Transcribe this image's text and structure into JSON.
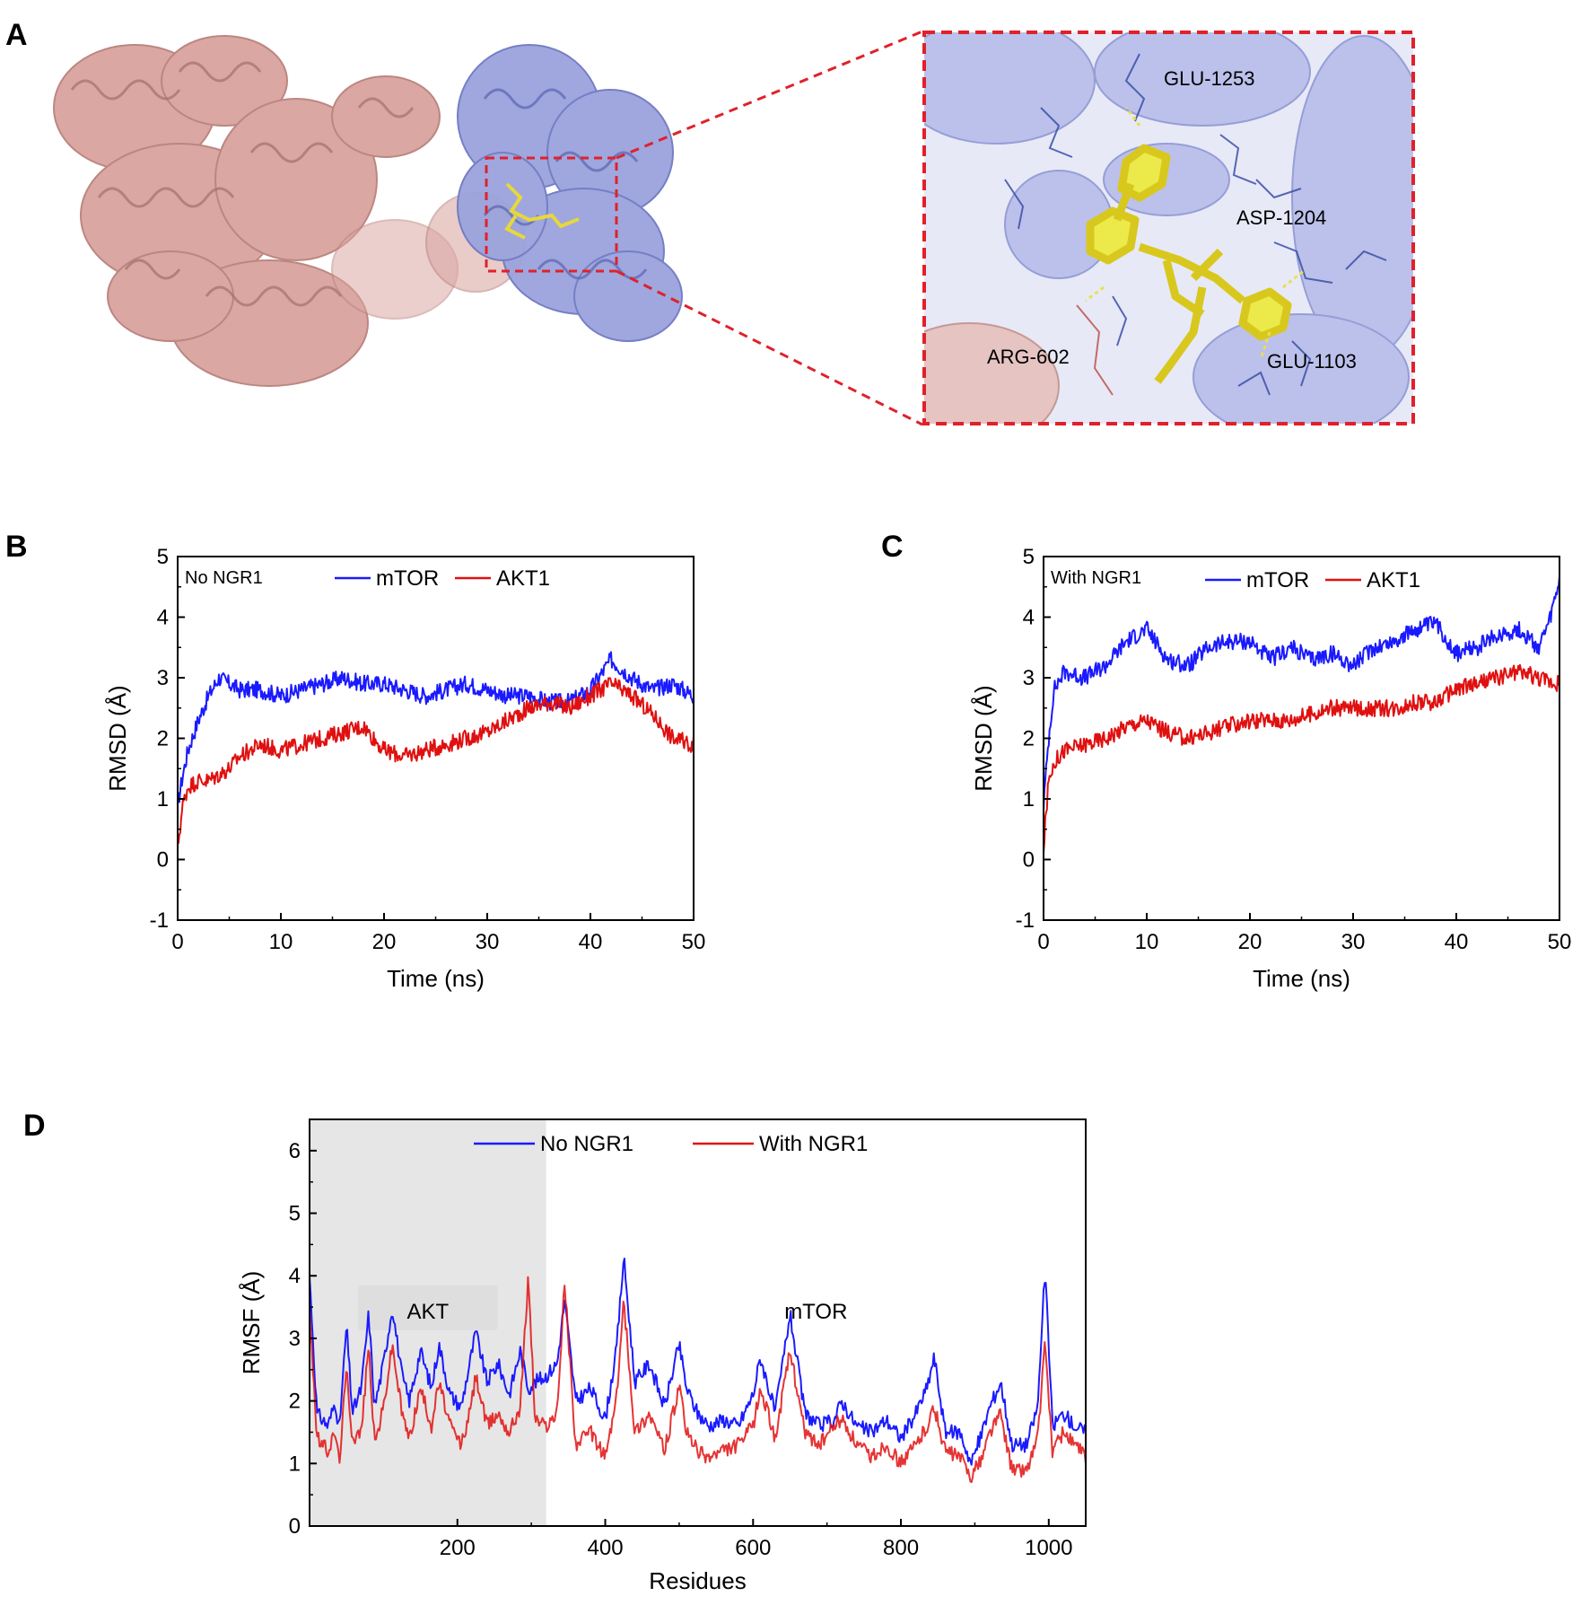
{
  "panels": {
    "A": "A",
    "B": "B",
    "C": "C",
    "D": "D"
  },
  "structure": {
    "residues": [
      "GLU-1253",
      "ASP-1204",
      "ARG-602",
      "GLU-1103"
    ],
    "colors": {
      "akt": "#d9a39f",
      "mtor": "#9aa3dd",
      "ligand": "#ecea4a",
      "box": "#e0212b"
    }
  },
  "chart_data": [
    {
      "type": "line",
      "panel": "B",
      "corner_text": "No NGR1",
      "xlabel": "Time (ns)",
      "ylabel": "RMSD (Å)",
      "xlim": [
        0,
        50
      ],
      "ylim": [
        -1,
        5
      ],
      "xticks": [
        "0",
        "10",
        "20",
        "30",
        "40",
        "50"
      ],
      "yticks": [
        "-1",
        "0",
        "1",
        "2",
        "3",
        "4",
        "5"
      ],
      "grid": false,
      "legend_position": "top-center",
      "series": [
        {
          "name": "mTOR",
          "color": "#1a1aff",
          "x": [
            0,
            0.5,
            1,
            2,
            3,
            4,
            5,
            6,
            8,
            10,
            12,
            14,
            16,
            18,
            20,
            22,
            24,
            26,
            28,
            30,
            32,
            34,
            36,
            38,
            40,
            42,
            44,
            46,
            48,
            50
          ],
          "y": [
            0.9,
            1.4,
            1.8,
            2.3,
            2.7,
            3.0,
            2.9,
            2.8,
            2.8,
            2.7,
            2.8,
            2.9,
            3.0,
            2.9,
            2.9,
            2.8,
            2.7,
            2.8,
            2.9,
            2.8,
            2.7,
            2.7,
            2.6,
            2.6,
            2.8,
            3.3,
            3.0,
            2.8,
            2.9,
            2.7
          ]
        },
        {
          "name": "AKT1",
          "color": "#e01010",
          "x": [
            0,
            0.5,
            1,
            2,
            3,
            4,
            5,
            6,
            8,
            10,
            12,
            14,
            16,
            18,
            20,
            22,
            24,
            26,
            28,
            30,
            32,
            34,
            36,
            38,
            40,
            42,
            44,
            46,
            48,
            50
          ],
          "y": [
            0.2,
            0.9,
            1.2,
            1.3,
            1.3,
            1.4,
            1.5,
            1.7,
            1.9,
            1.8,
            1.9,
            2.0,
            2.1,
            2.2,
            1.8,
            1.7,
            1.8,
            1.9,
            2.0,
            2.1,
            2.3,
            2.5,
            2.6,
            2.5,
            2.7,
            2.9,
            2.7,
            2.4,
            2.0,
            1.9
          ]
        }
      ]
    },
    {
      "type": "line",
      "panel": "C",
      "corner_text": "With NGR1",
      "xlabel": "Time (ns)",
      "ylabel": "RMSD (Å)",
      "xlim": [
        0,
        50
      ],
      "ylim": [
        -1,
        5
      ],
      "xticks": [
        "0",
        "10",
        "20",
        "30",
        "40",
        "50"
      ],
      "yticks": [
        "-1",
        "0",
        "1",
        "2",
        "3",
        "4",
        "5"
      ],
      "grid": false,
      "legend_position": "top-center",
      "series": [
        {
          "name": "mTOR",
          "color": "#1a1aff",
          "x": [
            0,
            0.5,
            1,
            2,
            4,
            6,
            8,
            10,
            12,
            14,
            16,
            18,
            20,
            22,
            24,
            26,
            28,
            30,
            32,
            34,
            36,
            38,
            40,
            42,
            44,
            46,
            48,
            49,
            50
          ],
          "y": [
            0.9,
            2.0,
            2.8,
            3.1,
            3.0,
            3.2,
            3.6,
            3.8,
            3.3,
            3.2,
            3.5,
            3.6,
            3.6,
            3.3,
            3.5,
            3.3,
            3.4,
            3.2,
            3.5,
            3.6,
            3.8,
            3.9,
            3.4,
            3.5,
            3.7,
            3.8,
            3.5,
            3.9,
            4.6
          ]
        },
        {
          "name": "AKT1",
          "color": "#e01010",
          "x": [
            0,
            0.5,
            1,
            2,
            4,
            6,
            8,
            10,
            12,
            14,
            16,
            18,
            20,
            22,
            24,
            26,
            28,
            30,
            32,
            34,
            36,
            38,
            40,
            42,
            44,
            46,
            48,
            50
          ],
          "y": [
            0.2,
            1.3,
            1.6,
            1.8,
            1.9,
            2.0,
            2.2,
            2.3,
            2.1,
            2.0,
            2.1,
            2.2,
            2.3,
            2.3,
            2.3,
            2.4,
            2.5,
            2.5,
            2.5,
            2.5,
            2.6,
            2.6,
            2.8,
            2.9,
            3.0,
            3.1,
            3.0,
            2.9
          ]
        }
      ]
    },
    {
      "type": "line",
      "panel": "D",
      "xlabel": "Residues",
      "ylabel": "RMSF (Å)",
      "xlim": [
        0,
        1050
      ],
      "ylim": [
        0,
        6.5
      ],
      "xticks": [
        "200",
        "400",
        "600",
        "800",
        "1000"
      ],
      "yticks": [
        "0",
        "1",
        "2",
        "3",
        "4",
        "5",
        "6"
      ],
      "grid": false,
      "legend_position": "top",
      "regions": [
        {
          "label": "AKT",
          "x_start": 0,
          "x_end": 320,
          "shaded": true
        },
        {
          "label": "mTOR",
          "x_start": 320,
          "x_end": 1050,
          "shaded": false
        }
      ],
      "series": [
        {
          "name": "No NGR1",
          "color": "#1a1aff",
          "x": [
            0,
            10,
            25,
            35,
            40,
            50,
            58,
            70,
            80,
            88,
            100,
            112,
            125,
            135,
            150,
            165,
            175,
            190,
            205,
            215,
            225,
            240,
            255,
            270,
            285,
            296,
            305,
            320,
            335,
            345,
            360,
            380,
            400,
            415,
            425,
            440,
            460,
            480,
            500,
            510,
            525,
            540,
            560,
            580,
            600,
            610,
            630,
            650,
            670,
            690,
            710,
            720,
            740,
            760,
            780,
            800,
            820,
            835,
            845,
            860,
            880,
            895,
            910,
            920,
            935,
            950,
            970,
            985,
            995,
            1005,
            1020,
            1035,
            1050
          ],
          "y": [
            4.0,
            1.8,
            1.6,
            2.0,
            1.5,
            3.2,
            1.8,
            2.2,
            3.4,
            1.9,
            2.6,
            3.5,
            2.4,
            2.0,
            2.8,
            2.2,
            2.9,
            2.1,
            1.9,
            2.5,
            3.1,
            2.3,
            2.6,
            2.1,
            2.8,
            2.2,
            2.3,
            2.4,
            2.6,
            3.6,
            2.0,
            2.2,
            1.7,
            2.8,
            4.3,
            2.3,
            2.6,
            1.9,
            2.9,
            2.2,
            1.8,
            1.6,
            1.7,
            1.6,
            2.1,
            2.7,
            1.8,
            3.4,
            1.8,
            1.6,
            1.7,
            2.0,
            1.6,
            1.5,
            1.7,
            1.4,
            1.8,
            2.2,
            2.7,
            1.5,
            1.5,
            1.0,
            1.5,
            1.9,
            2.3,
            1.3,
            1.3,
            1.9,
            4.1,
            1.6,
            1.8,
            1.6,
            1.5
          ]
        },
        {
          "name": "With NGR1",
          "color": "#e01010",
          "x": [
            0,
            10,
            25,
            35,
            40,
            50,
            58,
            70,
            80,
            88,
            100,
            112,
            125,
            135,
            150,
            165,
            175,
            190,
            205,
            215,
            225,
            240,
            255,
            270,
            285,
            296,
            305,
            320,
            335,
            345,
            360,
            380,
            400,
            415,
            425,
            440,
            460,
            480,
            500,
            510,
            525,
            540,
            560,
            580,
            600,
            610,
            630,
            650,
            670,
            690,
            710,
            720,
            740,
            760,
            780,
            800,
            820,
            835,
            845,
            860,
            880,
            895,
            910,
            920,
            935,
            950,
            970,
            985,
            995,
            1005,
            1020,
            1035,
            1050
          ],
          "y": [
            3.5,
            1.4,
            1.2,
            1.5,
            1.0,
            2.5,
            1.4,
            1.5,
            2.9,
            1.3,
            1.9,
            2.9,
            1.8,
            1.4,
            2.2,
            1.6,
            2.3,
            1.6,
            1.3,
            1.7,
            2.4,
            1.6,
            1.8,
            1.5,
            1.9,
            4.0,
            1.7,
            1.6,
            1.8,
            3.9,
            1.3,
            1.5,
            1.1,
            2.0,
            3.6,
            1.5,
            1.8,
            1.2,
            2.2,
            1.5,
            1.2,
            1.1,
            1.2,
            1.3,
            1.6,
            2.2,
            1.4,
            2.8,
            1.5,
            1.3,
            1.6,
            1.7,
            1.3,
            1.1,
            1.3,
            1.0,
            1.3,
            1.6,
            1.9,
            1.2,
            1.1,
            0.8,
            1.1,
            1.5,
            1.8,
            0.9,
            0.9,
            1.4,
            2.9,
            1.2,
            1.5,
            1.3,
            1.1
          ]
        }
      ]
    }
  ]
}
